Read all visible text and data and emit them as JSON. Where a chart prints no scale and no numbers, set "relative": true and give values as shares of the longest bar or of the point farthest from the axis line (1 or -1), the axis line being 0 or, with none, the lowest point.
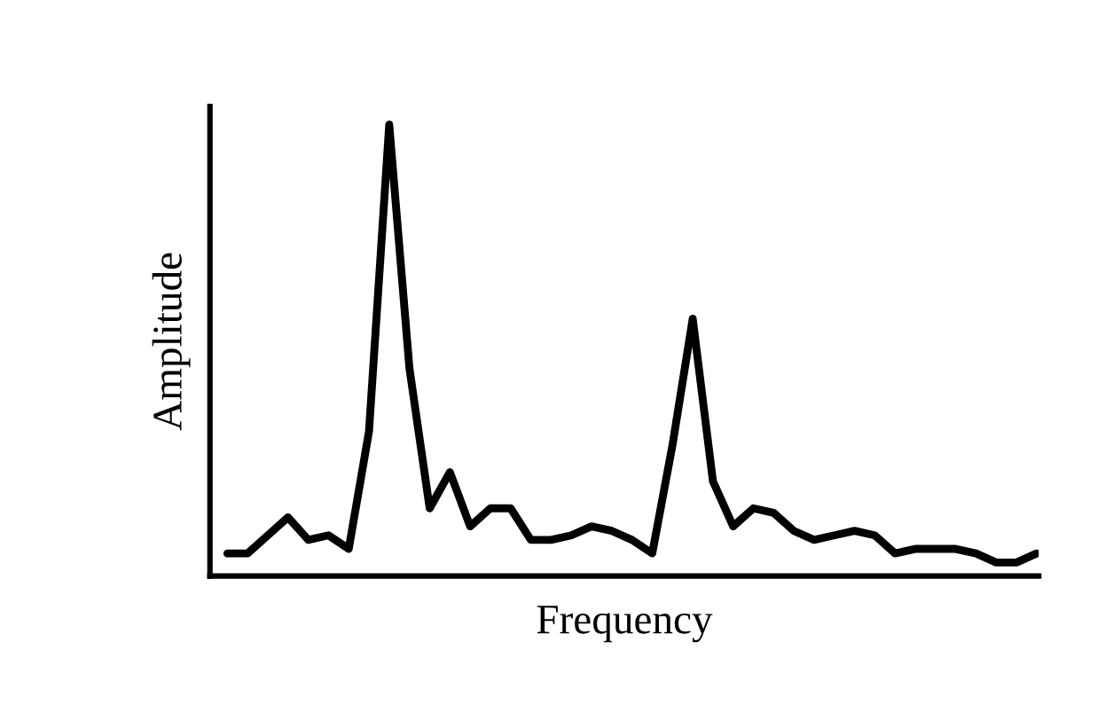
{
  "chart_data": {
    "type": "line",
    "relative": true,
    "xlabel": "Frequency",
    "ylabel": "Amplitude",
    "grid": false,
    "marker": "none",
    "line_style": "solid",
    "categories": [
      null,
      null,
      null,
      null,
      null,
      null,
      null,
      null,
      null,
      null,
      null,
      null,
      null,
      null,
      null,
      null,
      null,
      null,
      null,
      null,
      null,
      null,
      null,
      null,
      null,
      null,
      null,
      null,
      null,
      null,
      null,
      null,
      null,
      null,
      null,
      null,
      null,
      null,
      null,
      null,
      null
    ],
    "series": [
      {
        "color": "#000000",
        "values": [
          0.05,
          0.05,
          0.09,
          0.13,
          0.08,
          0.09,
          0.06,
          0.32,
          1,
          0.46,
          0.15,
          0.23,
          0.11,
          0.15,
          0.15,
          0.08,
          0.08,
          0.09,
          0.11,
          0.1,
          0.08,
          0.05,
          0.29,
          0.57,
          0.21,
          0.11,
          0.15,
          0.14,
          0.1,
          0.08,
          0.09,
          0.1,
          0.09,
          0.05,
          0.06,
          0.06,
          0.06,
          0.05,
          0.03,
          0.03,
          0.05
        ]
      }
    ]
  }
}
